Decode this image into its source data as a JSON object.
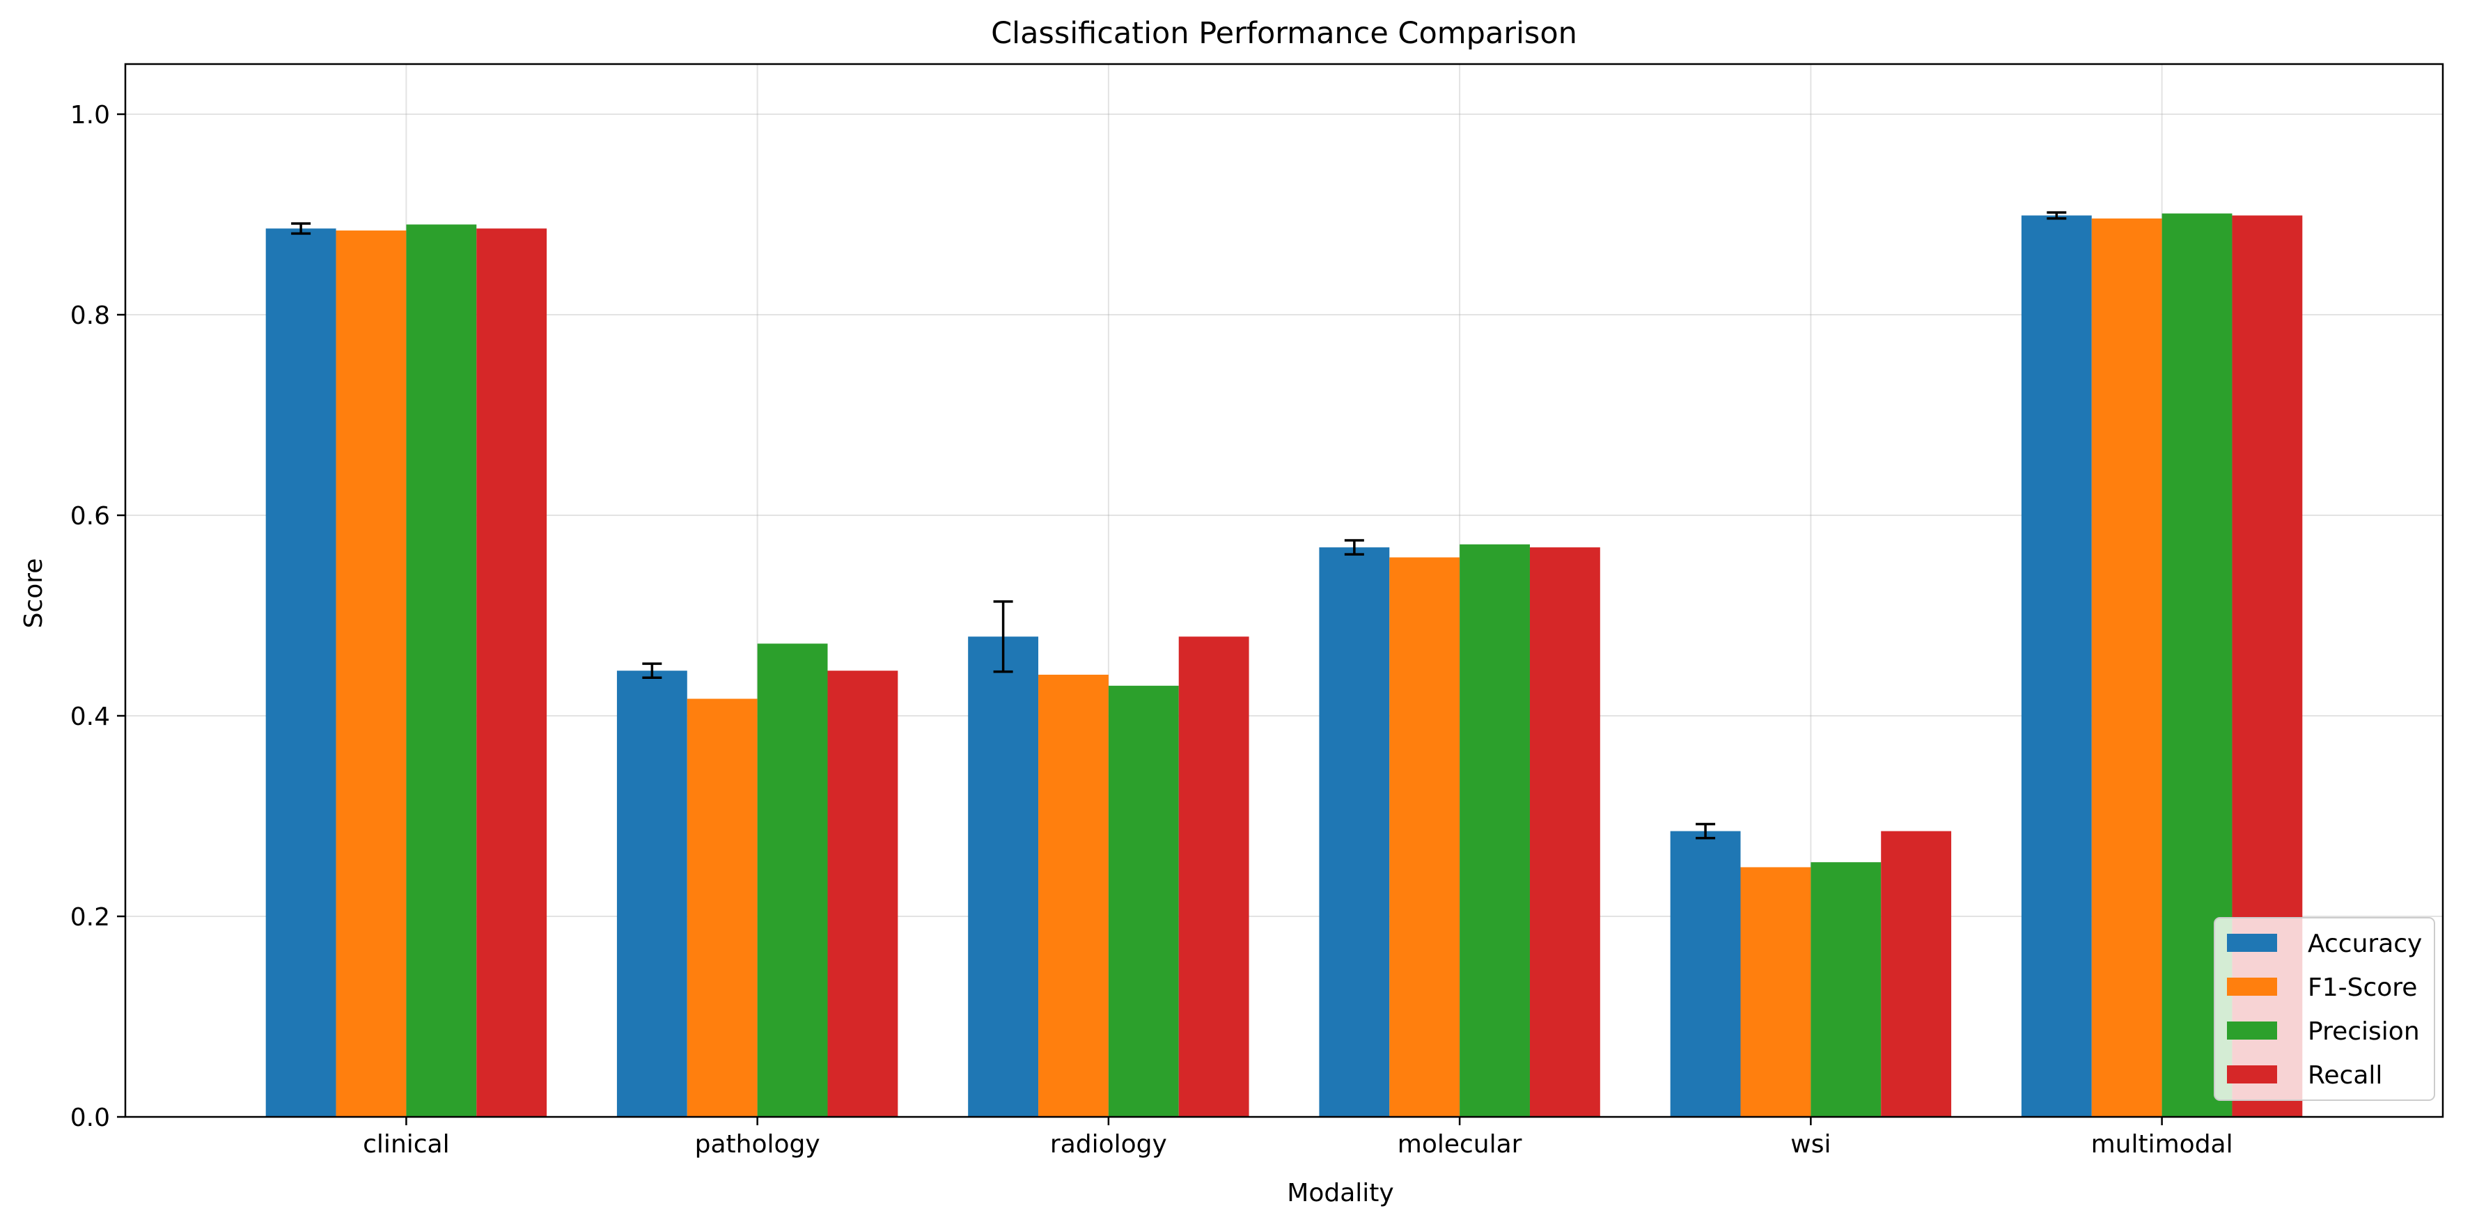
{
  "chart_data": {
    "type": "bar",
    "title": "Classification Performance Comparison",
    "xlabel": "Modality",
    "ylabel": "Score",
    "ylim": [
      0,
      1.05
    ],
    "yticks": [
      "0.0",
      "0.2",
      "0.4",
      "0.6",
      "0.8",
      "1.0"
    ],
    "grid": true,
    "legend_position": "lower-right",
    "categories": [
      "clinical",
      "pathology",
      "radiology",
      "molecular",
      "wsi",
      "multimodal"
    ],
    "series": [
      {
        "name": "Accuracy",
        "color": "#1f77b4",
        "values": [
          0.886,
          0.445,
          0.479,
          0.568,
          0.285,
          0.899
        ],
        "error": [
          0.005,
          0.007,
          0.035,
          0.007,
          0.007,
          0.003
        ]
      },
      {
        "name": "F1-Score",
        "color": "#ff7f0e",
        "values": [
          0.884,
          0.417,
          0.441,
          0.558,
          0.249,
          0.896
        ]
      },
      {
        "name": "Precision",
        "color": "#2ca02c",
        "values": [
          0.89,
          0.472,
          0.43,
          0.571,
          0.254,
          0.901
        ]
      },
      {
        "name": "Recall",
        "color": "#d62728",
        "values": [
          0.886,
          0.445,
          0.479,
          0.568,
          0.285,
          0.899
        ]
      }
    ]
  }
}
